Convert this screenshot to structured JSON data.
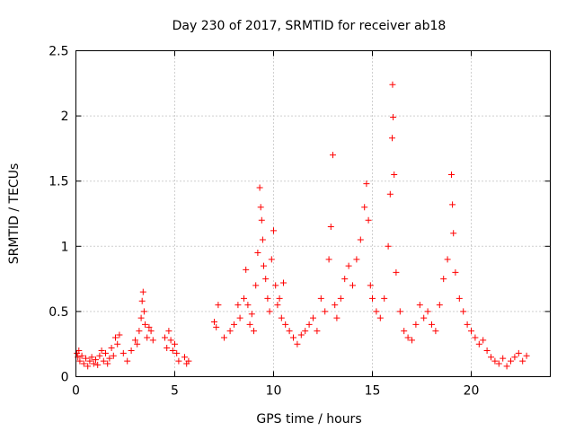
{
  "chart_data": {
    "type": "scatter",
    "title": "Day 230 of 2017, SRMTID for receiver ab18",
    "xlabel": "GPS time / hours",
    "ylabel": "SRMTID / TECUs",
    "xlim": [
      0,
      24
    ],
    "ylim": [
      0,
      2.5
    ],
    "x_ticks": [
      0,
      5,
      10,
      15,
      20
    ],
    "x_tick_labels": [
      "0",
      "5",
      "10",
      "15",
      "20"
    ],
    "y_ticks": [
      0,
      0.5,
      1,
      1.5,
      2,
      2.5
    ],
    "y_tick_labels": [
      "0",
      "0.5",
      "1",
      "1.5",
      "2",
      "2.5"
    ],
    "grid": true,
    "marker": "+",
    "color": "#ff0000",
    "series": [
      {
        "name": "SRMTID",
        "points": [
          [
            0.05,
            0.18
          ],
          [
            0.1,
            0.15
          ],
          [
            0.15,
            0.2
          ],
          [
            0.2,
            0.12
          ],
          [
            0.3,
            0.16
          ],
          [
            0.4,
            0.1
          ],
          [
            0.5,
            0.14
          ],
          [
            0.6,
            0.08
          ],
          [
            0.7,
            0.12
          ],
          [
            0.8,
            0.15
          ],
          [
            0.9,
            0.1
          ],
          [
            1.0,
            0.13
          ],
          [
            1.1,
            0.09
          ],
          [
            1.2,
            0.16
          ],
          [
            1.3,
            0.2
          ],
          [
            1.4,
            0.12
          ],
          [
            1.5,
            0.18
          ],
          [
            1.6,
            0.1
          ],
          [
            1.7,
            0.14
          ],
          [
            1.8,
            0.22
          ],
          [
            1.9,
            0.16
          ],
          [
            2.0,
            0.3
          ],
          [
            2.1,
            0.25
          ],
          [
            2.2,
            0.32
          ],
          [
            2.4,
            0.18
          ],
          [
            2.6,
            0.12
          ],
          [
            2.8,
            0.2
          ],
          [
            3.0,
            0.28
          ],
          [
            3.1,
            0.25
          ],
          [
            3.2,
            0.35
          ],
          [
            3.3,
            0.45
          ],
          [
            3.35,
            0.58
          ],
          [
            3.4,
            0.65
          ],
          [
            3.45,
            0.5
          ],
          [
            3.5,
            0.4
          ],
          [
            3.6,
            0.3
          ],
          [
            3.7,
            0.38
          ],
          [
            3.8,
            0.35
          ],
          [
            3.9,
            0.28
          ],
          [
            4.5,
            0.3
          ],
          [
            4.6,
            0.22
          ],
          [
            4.7,
            0.35
          ],
          [
            4.8,
            0.28
          ],
          [
            4.9,
            0.2
          ],
          [
            5.0,
            0.25
          ],
          [
            5.1,
            0.18
          ],
          [
            5.2,
            0.12
          ],
          [
            5.5,
            0.15
          ],
          [
            5.6,
            0.1
          ],
          [
            5.7,
            0.12
          ],
          [
            7.0,
            0.42
          ],
          [
            7.1,
            0.38
          ],
          [
            7.2,
            0.55
          ],
          [
            7.5,
            0.3
          ],
          [
            7.8,
            0.35
          ],
          [
            8.0,
            0.4
          ],
          [
            8.2,
            0.55
          ],
          [
            8.3,
            0.45
          ],
          [
            8.5,
            0.6
          ],
          [
            8.6,
            0.82
          ],
          [
            8.7,
            0.55
          ],
          [
            8.8,
            0.4
          ],
          [
            8.9,
            0.48
          ],
          [
            9.0,
            0.35
          ],
          [
            9.1,
            0.7
          ],
          [
            9.2,
            0.95
          ],
          [
            9.3,
            1.45
          ],
          [
            9.35,
            1.3
          ],
          [
            9.4,
            1.2
          ],
          [
            9.45,
            1.05
          ],
          [
            9.5,
            0.85
          ],
          [
            9.6,
            0.75
          ],
          [
            9.7,
            0.6
          ],
          [
            9.8,
            0.5
          ],
          [
            9.9,
            0.9
          ],
          [
            10.0,
            1.12
          ],
          [
            10.1,
            0.7
          ],
          [
            10.2,
            0.55
          ],
          [
            10.3,
            0.6
          ],
          [
            10.4,
            0.45
          ],
          [
            10.5,
            0.72
          ],
          [
            10.6,
            0.4
          ],
          [
            10.8,
            0.35
          ],
          [
            11.0,
            0.3
          ],
          [
            11.2,
            0.25
          ],
          [
            11.4,
            0.32
          ],
          [
            11.6,
            0.35
          ],
          [
            11.8,
            0.4
          ],
          [
            12.0,
            0.45
          ],
          [
            12.2,
            0.35
          ],
          [
            12.4,
            0.6
          ],
          [
            12.6,
            0.5
          ],
          [
            12.8,
            0.9
          ],
          [
            12.9,
            1.15
          ],
          [
            13.0,
            1.7
          ],
          [
            13.1,
            0.55
          ],
          [
            13.2,
            0.45
          ],
          [
            13.4,
            0.6
          ],
          [
            13.6,
            0.75
          ],
          [
            13.8,
            0.85
          ],
          [
            14.0,
            0.7
          ],
          [
            14.2,
            0.9
          ],
          [
            14.4,
            1.05
          ],
          [
            14.6,
            1.3
          ],
          [
            14.7,
            1.48
          ],
          [
            14.8,
            1.2
          ],
          [
            14.9,
            0.7
          ],
          [
            15.0,
            0.6
          ],
          [
            15.2,
            0.5
          ],
          [
            15.4,
            0.45
          ],
          [
            15.6,
            0.6
          ],
          [
            15.8,
            1.0
          ],
          [
            15.9,
            1.4
          ],
          [
            16.0,
            1.83
          ],
          [
            16.02,
            2.24
          ],
          [
            16.05,
            1.99
          ],
          [
            16.1,
            1.55
          ],
          [
            16.2,
            0.8
          ],
          [
            16.4,
            0.5
          ],
          [
            16.6,
            0.35
          ],
          [
            16.8,
            0.3
          ],
          [
            17.0,
            0.28
          ],
          [
            17.2,
            0.4
          ],
          [
            17.4,
            0.55
          ],
          [
            17.6,
            0.45
          ],
          [
            17.8,
            0.5
          ],
          [
            18.0,
            0.4
          ],
          [
            18.2,
            0.35
          ],
          [
            18.4,
            0.55
          ],
          [
            18.6,
            0.75
          ],
          [
            18.8,
            0.9
          ],
          [
            19.0,
            1.55
          ],
          [
            19.05,
            1.32
          ],
          [
            19.1,
            1.1
          ],
          [
            19.2,
            0.8
          ],
          [
            19.4,
            0.6
          ],
          [
            19.6,
            0.5
          ],
          [
            19.8,
            0.4
          ],
          [
            20.0,
            0.35
          ],
          [
            20.2,
            0.3
          ],
          [
            20.4,
            0.25
          ],
          [
            20.6,
            0.28
          ],
          [
            20.8,
            0.2
          ],
          [
            21.0,
            0.15
          ],
          [
            21.2,
            0.12
          ],
          [
            21.4,
            0.1
          ],
          [
            21.6,
            0.14
          ],
          [
            21.8,
            0.08
          ],
          [
            22.0,
            0.12
          ],
          [
            22.2,
            0.15
          ],
          [
            22.4,
            0.18
          ],
          [
            22.6,
            0.12
          ],
          [
            22.8,
            0.16
          ]
        ]
      }
    ]
  }
}
